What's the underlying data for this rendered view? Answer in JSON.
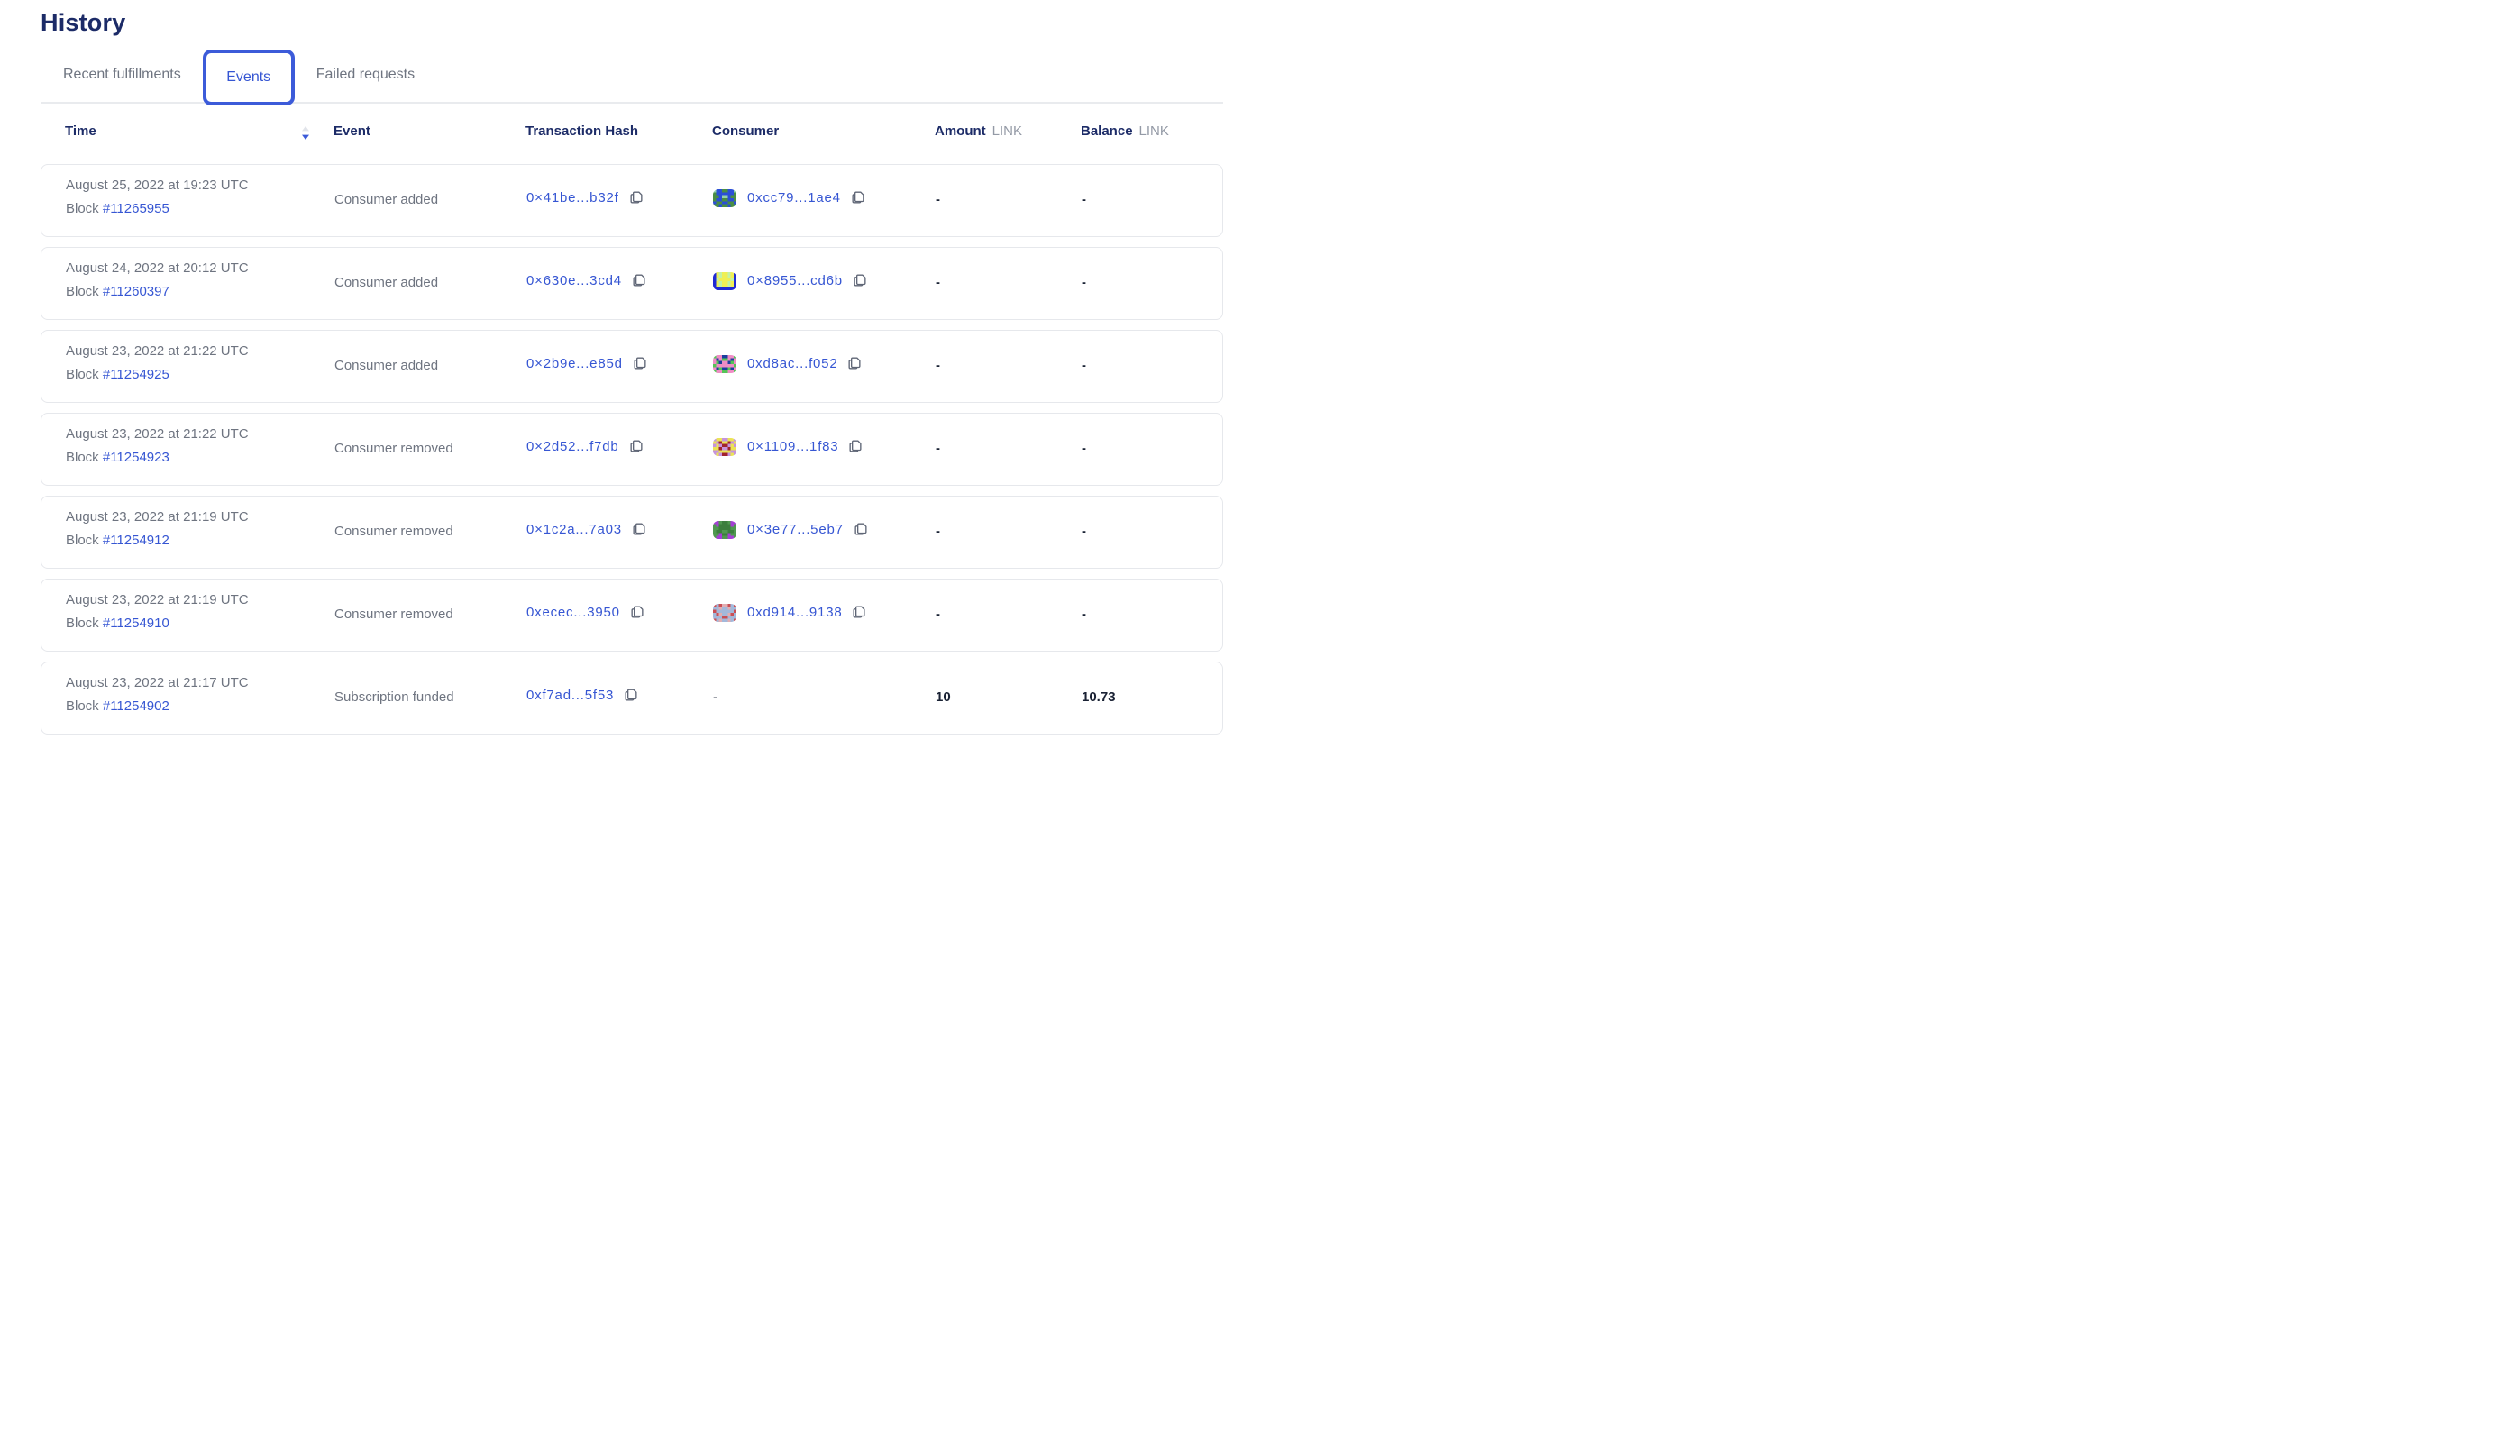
{
  "page": {
    "title": "History"
  },
  "tabs": [
    {
      "label": "Recent fulfillments",
      "active": false
    },
    {
      "label": "Events",
      "active": true
    },
    {
      "label": "Failed requests",
      "active": false
    }
  ],
  "icons": {
    "time_sort": "sort-descending-icon",
    "copy": "copy-icon"
  },
  "colors": {
    "heading_navy": "#1c2b67",
    "accent_blue": "#3656d3",
    "tab_border_blue": "#3c5bd9",
    "text_gray": "#6e7480",
    "value_dark": "#1a2234",
    "card_border": "#e6e8ec",
    "divider": "#e9ebee",
    "sort_inactive": "#e1e4ea"
  },
  "table": {
    "columns": {
      "time": "Time",
      "event": "Event",
      "tx": "Transaction Hash",
      "consumer": "Consumer",
      "amount": "Amount",
      "balance": "Balance",
      "unit": "LINK"
    },
    "sort": {
      "column": "Time",
      "direction": "descending"
    },
    "rows": [
      {
        "date": "August 25, 2022 at 19:23 UTC",
        "block_label": "Block",
        "block": "#11265955",
        "event": "Consumer added",
        "tx": "0×41be...b32f",
        "consumer": "0xcc79...1ae4",
        "amount": "-",
        "balance": "-",
        "identicon": {
          "colors": [
            "#4a8e44",
            "#2b4fd6",
            "#93d1ad"
          ],
          "pattern": [
            "21100112",
            "01111110",
            "00122100",
            "01100110",
            "10011001",
            "00100100"
          ]
        }
      },
      {
        "date": "August 24, 2022 at 20:12 UTC",
        "block_label": "Block",
        "block": "#11260397",
        "event": "Consumer added",
        "tx": "0×630e...3cd4",
        "consumer": "0×8955...cd6b",
        "amount": "-",
        "balance": "-",
        "identicon": {
          "colors": [
            "#1f2ad4",
            "#efef55",
            "#c4f2a5"
          ],
          "pattern": [
            "01211210",
            "01211210",
            "02111120",
            "01211210",
            "01211210",
            "00000000"
          ]
        }
      },
      {
        "date": "August 23, 2022 at 21:22 UTC",
        "block_label": "Block",
        "block": "#11254925",
        "event": "Consumer added",
        "tx": "0×2b9e...e85d",
        "consumer": "0xd8ac...f052",
        "amount": "-",
        "balance": "-",
        "identicon": {
          "colors": [
            "#55c457",
            "#ef8cc5",
            "#1c3f9e"
          ],
          "pattern": [
            "01122110",
            "12100121",
            "10211201",
            "01111110",
            "12022021",
            "01100110"
          ]
        }
      },
      {
        "date": "August 23, 2022 at 21:22 UTC",
        "block_label": "Block",
        "block": "#11254923",
        "event": "Consumer removed",
        "tx": "0×2d52...f7db",
        "consumer": "0×1109...1f83",
        "amount": "-",
        "balance": "-",
        "identicon": {
          "colors": [
            "#c693dd",
            "#ebe356",
            "#a1232d"
          ],
          "pattern": [
            "01100110",
            "10211201",
            "01022010",
            "11200211",
            "00111100",
            "01022010"
          ]
        }
      },
      {
        "date": "August 23, 2022 at 21:19 UTC",
        "block_label": "Block",
        "block": "#11254912",
        "event": "Consumer removed",
        "tx": "0×1c2a...7a03",
        "consumer": "0×3e77...5eb7",
        "amount": "-",
        "balance": "-",
        "identicon": {
          "colors": [
            "#4f9850",
            "#a43fd4",
            "#3c7e3e"
          ],
          "pattern": [
            "11022011",
            "01222210",
            "00222200",
            "02200220",
            "00122100",
            "01100110"
          ]
        }
      },
      {
        "date": "August 23, 2022 at 21:19 UTC",
        "block_label": "Block",
        "block": "#11254910",
        "event": "Consumer removed",
        "tx": "0xecec...3950",
        "consumer": "0xd914...9138",
        "amount": "-",
        "balance": "-",
        "identicon": {
          "colors": [
            "#c94f55",
            "#a3b8da",
            "#e2aeb2"
          ],
          "pattern": [
            "01022010",
            "11211211",
            "01111110",
            "10211201",
            "11100111",
            "01211210"
          ]
        }
      },
      {
        "date": "August 23, 2022 at 21:17 UTC",
        "block_label": "Block",
        "block": "#11254902",
        "event": "Subscription funded",
        "tx": "0xf7ad...5f53",
        "consumer": "-",
        "amount": "10",
        "balance": "10.73",
        "identicon": null
      }
    ]
  }
}
